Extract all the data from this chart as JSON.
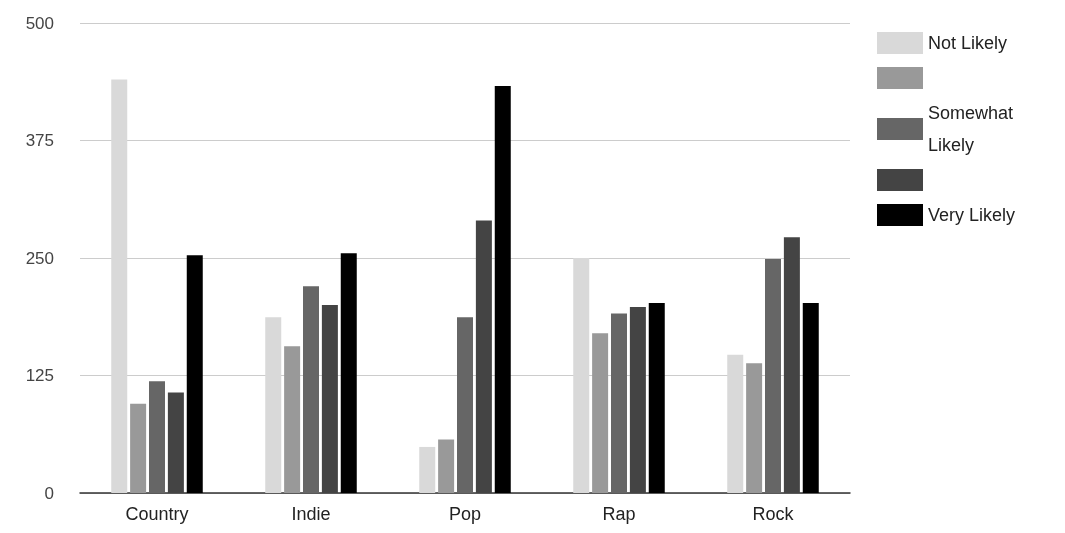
{
  "chart_data": {
    "type": "bar",
    "categories": [
      "Country",
      "Indie",
      "Pop",
      "Rap",
      "Rock"
    ],
    "series": [
      {
        "name": "Not Likely",
        "color": "#d9d9d9",
        "values": [
          440,
          187,
          49,
          250,
          147
        ]
      },
      {
        "name": null,
        "color": "#999999",
        "values": [
          95,
          156,
          57,
          170,
          138
        ]
      },
      {
        "name": "Somewhat Likely",
        "color": "#666666",
        "values": [
          119,
          220,
          187,
          191,
          249
        ]
      },
      {
        "name": null,
        "color": "#444444",
        "values": [
          107,
          200,
          290,
          198,
          272
        ]
      },
      {
        "name": "Very Likely",
        "color": "#000000",
        "values": [
          253,
          255,
          433,
          202,
          202
        ]
      }
    ],
    "ylim": [
      0,
      500
    ],
    "yticks": [
      0,
      125,
      250,
      375,
      500
    ],
    "grid": "y",
    "legend": "top right"
  }
}
